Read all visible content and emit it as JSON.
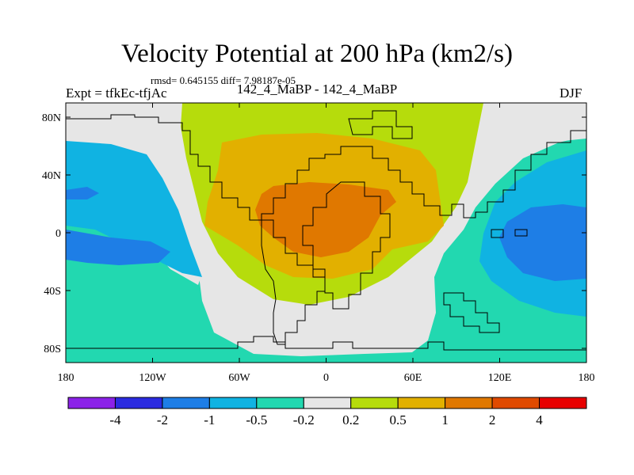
{
  "title": "Velocity Potential at 200 hPa (km2/s)",
  "stats": "rmsd= 0.645155 diff= 7.98187e-05",
  "left_label": "Expt = tfkEc-tfjAc",
  "center_label": "142_4_MaBP - 142_4_MaBP",
  "right_label": "DJF",
  "map": {
    "lat_ticks": [
      "80N",
      "40N",
      "0",
      "40S",
      "80S"
    ],
    "lon_ticks": [
      "180",
      "120W",
      "60W",
      "0",
      "60E",
      "120E",
      "180"
    ]
  },
  "colorbar": {
    "colors": [
      "#8b22e8",
      "#2b2be0",
      "#1e7ee6",
      "#10b3e2",
      "#22d8b0",
      "#e6e6e6",
      "#b6dc0c",
      "#e2b000",
      "#e07800",
      "#e04a00",
      "#e80000"
    ],
    "labels": [
      "-4",
      "-2",
      "-1",
      "-0.5",
      "-0.2",
      "0.2",
      "0.5",
      "1",
      "2",
      "4"
    ]
  },
  "chart_data": {
    "type": "heatmap",
    "title": "Velocity Potential at 200 hPa (km2/s)",
    "subtitle": "142_4_MaBP - 142_4_MaBP",
    "left_label": "Expt = tfkEc-tfjAc",
    "right_label": "DJF",
    "stats": {
      "rmsd": 0.645155,
      "diff": 7.98187e-05
    },
    "x_ticks": [
      "180",
      "120W",
      "60W",
      "0",
      "60E",
      "120E",
      "180"
    ],
    "y_ticks": [
      "80N",
      "40N",
      "0",
      "40S",
      "80S"
    ],
    "xlim": [
      -180,
      180
    ],
    "ylim": [
      -90,
      90
    ],
    "levels": [
      -4,
      -2,
      -1,
      -0.5,
      -0.2,
      0.2,
      0.5,
      1,
      2,
      4
    ],
    "regions": [
      {
        "range": "1 to 2",
        "approx_center": [
          0,
          10
        ]
      },
      {
        "range": "0.5 to 1",
        "approx_center": [
          10,
          25
        ]
      },
      {
        "range": "0.2 to 0.5",
        "approx_center": [
          -10,
          40
        ]
      },
      {
        "range": "-1 to -0.5",
        "approx_center": [
          150,
          5
        ]
      },
      {
        "range": "-1 to -0.5",
        "approx_center": [
          -160,
          0
        ]
      },
      {
        "range": "-0.5 to -0.2",
        "approx_center": [
          0,
          -70
        ]
      }
    ]
  }
}
